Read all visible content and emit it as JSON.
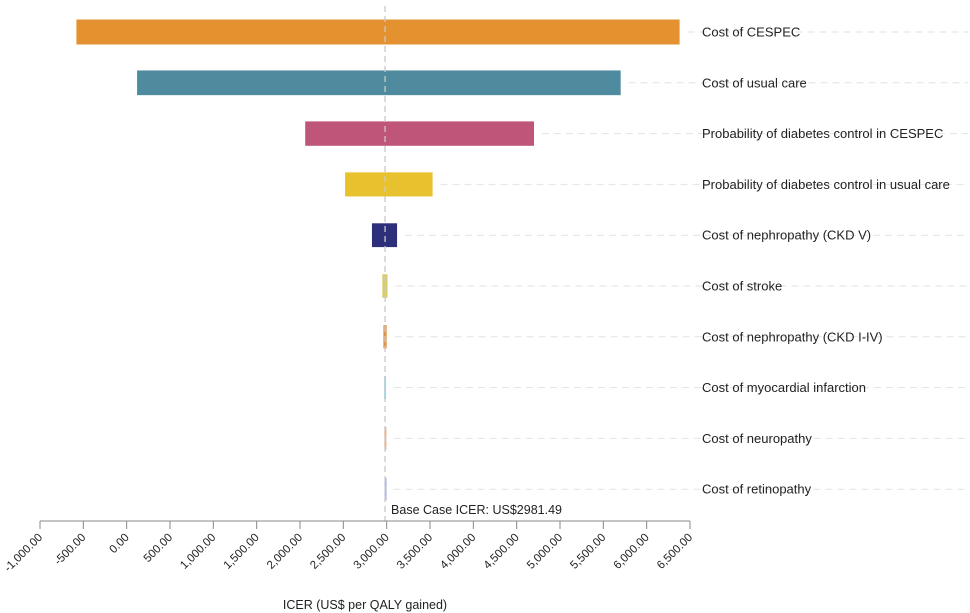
{
  "chart_data": {
    "type": "bar",
    "orientation": "horizontal",
    "style": "tornado",
    "xlabel": "ICER (US$ per QALY gained)",
    "base_case_value": 2981.49,
    "base_case_label": "Base Case ICER: US$2981.49",
    "xlim": [
      -1000,
      6500
    ],
    "xticks": [
      -1000,
      -500,
      0,
      500,
      1000,
      1500,
      2000,
      2500,
      3000,
      3500,
      4000,
      4500,
      5000,
      5500,
      6000,
      6500
    ],
    "xtick_labels": [
      "-1,000.00",
      "-500.00",
      "0.00",
      "500.00",
      "1,000.00",
      "1,500.00",
      "2,000.00",
      "2,500.00",
      "3,000.00",
      "3,500.00",
      "4,000.00",
      "4,500.00",
      "5,000.00",
      "5,500.00",
      "6,000.00",
      "6,500.00"
    ],
    "grid": false,
    "categories": [
      "Cost of CESPEC",
      "Cost of usual care",
      "Probability of diabetes control in CESPEC",
      "Probability of diabetes control in usual care",
      "Cost of nephropathy (CKD V)",
      "Cost of stroke",
      "Cost of nephropathy (CKD I-IV)",
      "Cost of myocardial infarction",
      "Cost of neuropathy",
      "Cost of retinopathy"
    ],
    "low": [
      -580,
      120,
      2060,
      2520,
      2830,
      2950,
      2962,
      2970,
      2974,
      2976
    ],
    "high": [
      6380,
      5700,
      4700,
      3530,
      3120,
      3010,
      3000,
      2992,
      2988,
      2986
    ],
    "colors": [
      "#E3922F",
      "#4F8B9E",
      "#BF5578",
      "#E8C22E",
      "#2E2F7A",
      "#D9CC6A",
      "#E0944A",
      "#A8D8E6",
      "#E8B08A",
      "#AAB6E4"
    ]
  }
}
